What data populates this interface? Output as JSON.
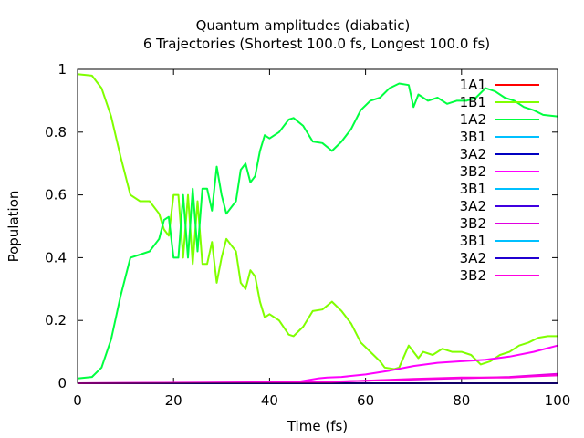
{
  "chart_data": {
    "type": "line",
    "title": "Quantum amplitudes (diabatic)",
    "subtitle": "6 Trajectories (Shortest 100.0 fs, Longest 100.0 fs)",
    "xlabel": "Time (fs)",
    "ylabel": "Population",
    "xlim": [
      0,
      100
    ],
    "ylim": [
      0,
      1
    ],
    "xticks": [
      "0",
      "20",
      "40",
      "60",
      "80",
      "100"
    ],
    "yticks": [
      "0",
      "0.2",
      "0.4",
      "0.6",
      "0.8",
      "1"
    ],
    "grid": false,
    "legend_position": "top-right",
    "series": [
      {
        "name": "1A1",
        "color": "#ff0000",
        "x": [
          0,
          100
        ],
        "y": [
          0,
          0
        ]
      },
      {
        "name": "1B1",
        "color": "#80ff00",
        "x": [
          0,
          3,
          5,
          7,
          9,
          11,
          13,
          15,
          17,
          18,
          19,
          20,
          21,
          22,
          23,
          24,
          25,
          26,
          27,
          28,
          29,
          30,
          31,
          32,
          33,
          34,
          35,
          36,
          37,
          38,
          39,
          40,
          42,
          44,
          45,
          47,
          49,
          51,
          53,
          55,
          57,
          59,
          61,
          63,
          64,
          66,
          67,
          69,
          71,
          72,
          74,
          76,
          78,
          80,
          82,
          84,
          86,
          88,
          90,
          92,
          94,
          96,
          98,
          100
        ],
        "y": [
          0.985,
          0.98,
          0.94,
          0.85,
          0.72,
          0.6,
          0.58,
          0.58,
          0.54,
          0.49,
          0.47,
          0.6,
          0.6,
          0.4,
          0.6,
          0.38,
          0.58,
          0.38,
          0.38,
          0.45,
          0.32,
          0.4,
          0.46,
          0.44,
          0.42,
          0.32,
          0.3,
          0.36,
          0.34,
          0.26,
          0.21,
          0.22,
          0.2,
          0.155,
          0.15,
          0.18,
          0.23,
          0.235,
          0.26,
          0.23,
          0.19,
          0.13,
          0.1,
          0.07,
          0.05,
          0.045,
          0.05,
          0.12,
          0.08,
          0.1,
          0.09,
          0.11,
          0.1,
          0.1,
          0.09,
          0.06,
          0.07,
          0.09,
          0.1,
          0.12,
          0.13,
          0.145,
          0.15,
          0.15
        ]
      },
      {
        "name": "1A2",
        "color": "#00ff40",
        "x": [
          0,
          3,
          5,
          7,
          9,
          11,
          13,
          15,
          17,
          18,
          19,
          20,
          21,
          22,
          23,
          24,
          25,
          26,
          27,
          28,
          29,
          30,
          31,
          32,
          33,
          34,
          35,
          36,
          37,
          38,
          39,
          40,
          42,
          44,
          45,
          47,
          49,
          51,
          53,
          55,
          57,
          59,
          61,
          63,
          65,
          67,
          69,
          70,
          71,
          73,
          75,
          77,
          79,
          81,
          83,
          85,
          87,
          89,
          91,
          93,
          95,
          97,
          100
        ],
        "y": [
          0.015,
          0.02,
          0.05,
          0.14,
          0.28,
          0.4,
          0.41,
          0.42,
          0.46,
          0.52,
          0.53,
          0.4,
          0.4,
          0.6,
          0.4,
          0.62,
          0.42,
          0.62,
          0.62,
          0.55,
          0.69,
          0.6,
          0.54,
          0.56,
          0.58,
          0.68,
          0.7,
          0.64,
          0.66,
          0.74,
          0.79,
          0.78,
          0.8,
          0.84,
          0.845,
          0.82,
          0.77,
          0.765,
          0.74,
          0.77,
          0.81,
          0.87,
          0.9,
          0.91,
          0.94,
          0.955,
          0.95,
          0.88,
          0.92,
          0.9,
          0.91,
          0.89,
          0.9,
          0.9,
          0.91,
          0.94,
          0.93,
          0.91,
          0.9,
          0.88,
          0.87,
          0.855,
          0.85
        ]
      },
      {
        "name": "3B1",
        "color": "#00c0ff",
        "x": [
          0,
          100
        ],
        "y": [
          0,
          0
        ]
      },
      {
        "name": "3A2",
        "color": "#0000c0",
        "x": [
          0,
          100
        ],
        "y": [
          0,
          0
        ]
      },
      {
        "name": "3B2",
        "color": "#ff00ff",
        "x": [
          0,
          44,
          46,
          48,
          50,
          52,
          55,
          60,
          65,
          70,
          75,
          80,
          85,
          90,
          95,
          100
        ],
        "y": [
          0,
          0,
          0.005,
          0.01,
          0.015,
          0.018,
          0.02,
          0.028,
          0.04,
          0.055,
          0.065,
          0.07,
          0.075,
          0.085,
          0.1,
          0.12
        ]
      },
      {
        "name": "3B1",
        "color": "#00c0ff",
        "x": [
          0,
          100
        ],
        "y": [
          0,
          0
        ]
      },
      {
        "name": "3A2",
        "color": "#4000e0",
        "x": [
          0,
          100
        ],
        "y": [
          0,
          0
        ]
      },
      {
        "name": "3B2",
        "color": "#e000e0",
        "x": [
          0,
          50,
          60,
          70,
          80,
          90,
          100
        ],
        "y": [
          0,
          0.004,
          0.008,
          0.012,
          0.016,
          0.02,
          0.03
        ]
      },
      {
        "name": "3B1",
        "color": "#00c0ff",
        "x": [
          0,
          100
        ],
        "y": [
          0,
          0
        ]
      },
      {
        "name": "3A2",
        "color": "#2000d0",
        "x": [
          0,
          100
        ],
        "y": [
          0,
          0
        ]
      },
      {
        "name": "3B2",
        "color": "#ff00e0",
        "x": [
          0,
          50,
          60,
          70,
          80,
          90,
          95,
          100
        ],
        "y": [
          0,
          0.003,
          0.008,
          0.014,
          0.018,
          0.018,
          0.022,
          0.025
        ]
      }
    ]
  }
}
